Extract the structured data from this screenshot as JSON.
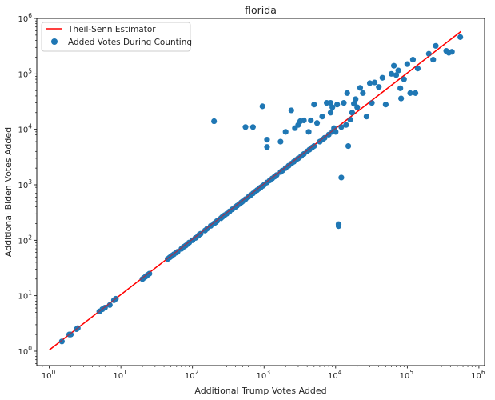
{
  "chart_data": {
    "type": "scatter",
    "title": "florida",
    "xlabel": "Additional Trump Votes Added",
    "ylabel": "Additional Biden Votes Added",
    "xscale": "log",
    "yscale": "log",
    "xlim": [
      0.67,
      1200000
    ],
    "ylim": [
      0.55,
      1000000
    ],
    "grid": false,
    "legend_placement": "upper-left",
    "x_ticks": [
      {
        "value": 1,
        "base": "10",
        "exp": "0"
      },
      {
        "value": 10,
        "base": "10",
        "exp": "1"
      },
      {
        "value": 100,
        "base": "10",
        "exp": "2"
      },
      {
        "value": 1000,
        "base": "10",
        "exp": "3"
      },
      {
        "value": 10000,
        "base": "10",
        "exp": "4"
      },
      {
        "value": 100000,
        "base": "10",
        "exp": "5"
      },
      {
        "value": 1000000,
        "base": "10",
        "exp": "6"
      }
    ],
    "y_ticks": [
      {
        "value": 1,
        "base": "10",
        "exp": "0"
      },
      {
        "value": 10,
        "base": "10",
        "exp": "1"
      },
      {
        "value": 100,
        "base": "10",
        "exp": "2"
      },
      {
        "value": 1000,
        "base": "10",
        "exp": "3"
      },
      {
        "value": 10000,
        "base": "10",
        "exp": "4"
      },
      {
        "value": 100000,
        "base": "10",
        "exp": "5"
      },
      {
        "value": 1000000,
        "base": "10",
        "exp": "6"
      }
    ],
    "series": [
      {
        "name": "Added Votes During Counting",
        "kind": "scatter",
        "color": "#1f77b4",
        "points": [
          [
            1.5,
            1.5
          ],
          [
            1.9,
            2.0
          ],
          [
            2.0,
            2.0
          ],
          [
            2.4,
            2.5
          ],
          [
            2.5,
            2.6
          ],
          [
            5,
            5.2
          ],
          [
            5.5,
            5.7
          ],
          [
            6,
            6.1
          ],
          [
            7,
            6.8
          ],
          [
            8,
            8.3
          ],
          [
            8.5,
            8.8
          ],
          [
            20,
            20
          ],
          [
            21,
            21
          ],
          [
            22,
            22
          ],
          [
            23,
            23
          ],
          [
            24,
            24
          ],
          [
            25,
            25
          ],
          [
            45,
            46
          ],
          [
            48,
            49
          ],
          [
            50,
            51
          ],
          [
            52,
            53
          ],
          [
            55,
            56
          ],
          [
            60,
            60
          ],
          [
            62,
            62
          ],
          [
            70,
            70
          ],
          [
            75,
            76
          ],
          [
            80,
            80
          ],
          [
            85,
            85
          ],
          [
            90,
            91
          ],
          [
            100,
            100
          ],
          [
            110,
            110
          ],
          [
            120,
            120
          ],
          [
            125,
            127
          ],
          [
            130,
            131
          ],
          [
            150,
            150
          ],
          [
            160,
            162
          ],
          [
            180,
            182
          ],
          [
            200,
            200
          ],
          [
            210,
            210
          ],
          [
            220,
            222
          ],
          [
            250,
            250
          ],
          [
            260,
            262
          ],
          [
            280,
            282
          ],
          [
            300,
            300
          ],
          [
            330,
            332
          ],
          [
            360,
            362
          ],
          [
            400,
            400
          ],
          [
            420,
            420
          ],
          [
            450,
            450
          ],
          [
            480,
            480
          ],
          [
            500,
            500
          ],
          [
            550,
            550
          ],
          [
            600,
            600
          ],
          [
            650,
            650
          ],
          [
            700,
            700
          ],
          [
            750,
            750
          ],
          [
            800,
            800
          ],
          [
            850,
            850
          ],
          [
            900,
            900
          ],
          [
            950,
            950
          ],
          [
            1000,
            1000
          ],
          [
            1100,
            1100
          ],
          [
            1200,
            1200
          ],
          [
            1300,
            1300
          ],
          [
            1400,
            1400
          ],
          [
            1500,
            1500
          ],
          [
            1700,
            1700
          ],
          [
            1800,
            1800
          ],
          [
            2000,
            2000
          ],
          [
            2200,
            2200
          ],
          [
            2400,
            2400
          ],
          [
            2600,
            2600
          ],
          [
            2800,
            2800
          ],
          [
            3000,
            3000
          ],
          [
            3300,
            3300
          ],
          [
            3600,
            3600
          ],
          [
            4000,
            4000
          ],
          [
            4300,
            4300
          ],
          [
            4700,
            4700
          ],
          [
            5000,
            5000
          ],
          [
            6000,
            6000
          ],
          [
            6500,
            6500
          ],
          [
            7000,
            7000
          ],
          [
            8000,
            8000
          ],
          [
            9000,
            9000
          ],
          [
            200,
            14000
          ],
          [
            550,
            11000
          ],
          [
            700,
            11000
          ],
          [
            950,
            26000
          ],
          [
            1100,
            6500
          ],
          [
            1100,
            4800
          ],
          [
            1700,
            6000
          ],
          [
            2000,
            9000
          ],
          [
            2400,
            22000
          ],
          [
            2700,
            10500
          ],
          [
            3000,
            12000
          ],
          [
            3200,
            14000
          ],
          [
            3600,
            14500
          ],
          [
            4200,
            9000
          ],
          [
            4500,
            14500
          ],
          [
            5000,
            28000
          ],
          [
            5500,
            13000
          ],
          [
            6500,
            17000
          ],
          [
            7500,
            30000
          ],
          [
            8500,
            30000
          ],
          [
            8500,
            20000
          ],
          [
            9000,
            25000
          ],
          [
            9500,
            10500
          ],
          [
            10500,
            28000
          ],
          [
            10000,
            9000
          ],
          [
            12000,
            11000
          ],
          [
            13000,
            30000
          ],
          [
            14000,
            12000
          ],
          [
            14500,
            45000
          ],
          [
            15000,
            5000
          ],
          [
            16000,
            15000
          ],
          [
            17000,
            20000
          ],
          [
            18000,
            29000
          ],
          [
            19000,
            35000
          ],
          [
            20000,
            25000
          ],
          [
            22000,
            56000
          ],
          [
            24000,
            45000
          ],
          [
            27000,
            17000
          ],
          [
            30000,
            68000
          ],
          [
            32000,
            30000
          ],
          [
            35000,
            70000
          ],
          [
            40000,
            58000
          ],
          [
            45000,
            85000
          ],
          [
            50000,
            28000
          ],
          [
            60000,
            100000
          ],
          [
            65000,
            140000
          ],
          [
            70000,
            95000
          ],
          [
            75000,
            115000
          ],
          [
            80000,
            55000
          ],
          [
            82000,
            36000
          ],
          [
            90000,
            80000
          ],
          [
            100000,
            150000
          ],
          [
            110000,
            45000
          ],
          [
            120000,
            180000
          ],
          [
            130000,
            45000
          ],
          [
            140000,
            125000
          ],
          [
            200000,
            230000
          ],
          [
            230000,
            180000
          ],
          [
            250000,
            320000
          ],
          [
            350000,
            260000
          ],
          [
            380000,
            240000
          ],
          [
            420000,
            250000
          ],
          [
            550000,
            460000
          ],
          [
            11000,
            195
          ],
          [
            11000,
            180
          ],
          [
            12000,
            1350
          ]
        ]
      },
      {
        "name": "Theil-Senn Estimator",
        "kind": "line",
        "color": "#ff0000",
        "points": [
          [
            1,
            1.05
          ],
          [
            560000,
            580000
          ]
        ]
      }
    ]
  }
}
